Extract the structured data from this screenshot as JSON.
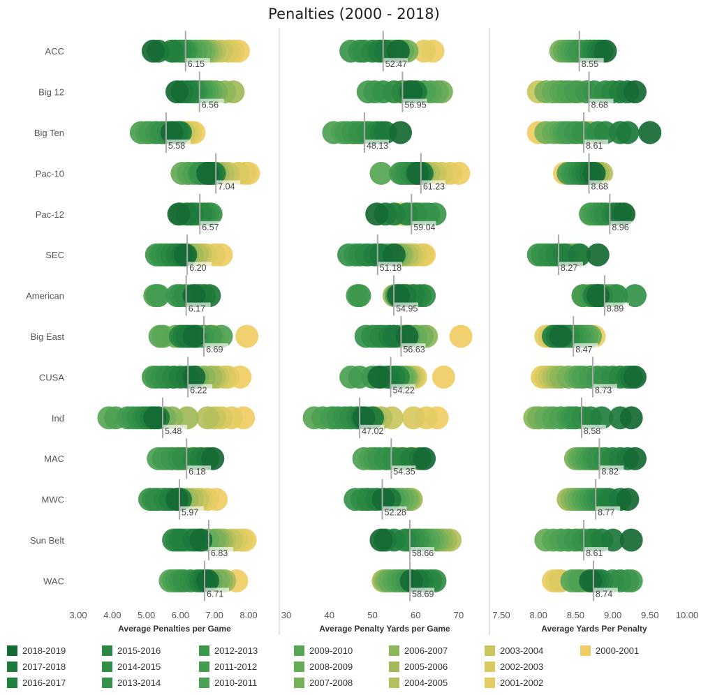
{
  "chart_data": {
    "type": "scatter",
    "title": "Penalties (2000 - 2018)",
    "conferences": [
      "ACC",
      "Big 12",
      "Big Ten",
      "Pac-10",
      "Pac-12",
      "SEC",
      "American",
      "Big East",
      "CUSA",
      "Ind",
      "MAC",
      "MWC",
      "Sun Belt",
      "WAC"
    ],
    "seasons": [
      "2018-2019",
      "2017-2018",
      "2016-2017",
      "2015-2016",
      "2014-2015",
      "2013-2014",
      "2012-2013",
      "2011-2012",
      "2010-2011",
      "2009-2010",
      "2008-2009",
      "2007-2008",
      "2006-2007",
      "2005-2006",
      "2004-2005",
      "2003-2004",
      "2002-2003",
      "2001-2002",
      "2000-2001"
    ],
    "season_colors": [
      "#166b35",
      "#1e7a3c",
      "#22803f",
      "#2a8843",
      "#308e47",
      "#36924a",
      "#3d974d",
      "#449c50",
      "#4da153",
      "#57a656",
      "#66ab58",
      "#76b059",
      "#8db75a",
      "#a2ba5a",
      "#b6bf5d",
      "#c8c65f",
      "#d8c960",
      "#e5cc62",
      "#f0cc64"
    ],
    "panels": [
      {
        "key": "apg",
        "xlabel": "Average Penalties per Game",
        "xlim": [
          3.0,
          8.0
        ],
        "ticks": [
          3.0,
          4.0,
          5.0,
          6.0,
          7.0,
          8.0
        ],
        "tick_labels": [
          "3.00",
          "4.00",
          "5.00",
          "6.00",
          "7.00",
          "8.00"
        ],
        "means": [
          "6.15",
          "6.56",
          "5.58",
          "7.04",
          "6.57",
          "6.20",
          "6.17",
          "6.69",
          "6.22",
          "5.48",
          "6.18",
          "5.97",
          "6.83",
          "6.71"
        ],
        "values": [
          [
            5.2,
            5.35,
            5.75,
            5.85,
            6.0,
            6.1,
            6.15,
            6.2,
            6.3,
            6.45,
            6.6,
            6.7,
            6.8,
            6.9,
            7.0,
            7.2,
            7.4,
            7.55,
            7.7
          ],
          [
            5.9,
            6.05,
            6.2,
            6.3,
            6.4,
            6.45,
            6.5,
            6.6,
            6.7,
            6.8,
            6.9,
            7.05,
            7.3,
            7.55,
            7.05,
            6.9,
            6.7,
            6.55,
            6.4
          ],
          [
            5.75,
            5.9,
            6.0,
            5.95,
            5.65,
            5.45,
            5.3,
            5.1,
            4.85,
            5.0,
            5.25,
            5.55,
            5.75,
            5.85,
            6.0,
            6.1,
            6.2,
            6.3,
            6.4
          ],
          [
            6.8,
            6.9,
            7.0,
            6.95,
            6.85,
            6.6,
            6.55,
            6.7,
            6.4,
            6.25,
            6.05,
            6.2,
            6.75,
            7.1,
            7.25,
            7.4,
            7.7,
            7.9,
            8.0
          ],
          [
            5.95,
            6.2,
            6.35,
            6.6,
            6.7,
            6.8,
            6.9,
            6.85,
            6.5,
            6.45,
            6.3,
            6.0,
            6.1,
            6.2,
            6.35,
            6.45,
            6.55,
            6.6,
            6.7
          ],
          [
            6.15,
            6.05,
            5.9,
            5.75,
            5.6,
            5.45,
            5.3,
            5.4,
            5.55,
            5.7,
            5.85,
            6.0,
            6.2,
            6.35,
            6.5,
            6.6,
            6.75,
            7.0,
            7.2
          ],
          [
            6.4,
            6.85,
            6.7,
            6.55,
            6.15,
            6.0,
            5.9,
            5.35,
            5.3,
            5.25,
            6.3,
            6.4,
            6.55,
            6.6,
            6.7,
            6.45,
            6.5,
            6.6,
            6.7
          ],
          [
            6.4,
            6.2,
            6.1,
            6.0,
            6.3,
            6.5,
            6.65,
            6.9,
            7.2,
            5.4,
            5.5,
            5.85,
            6.0,
            6.2,
            6.45,
            6.75,
            6.8,
            7.0,
            7.95
          ],
          [
            6.4,
            6.2,
            6.0,
            5.8,
            5.6,
            5.45,
            5.3,
            5.2,
            5.6,
            5.8,
            6.3,
            6.5,
            6.7,
            6.9,
            7.0,
            7.1,
            7.3,
            7.4,
            7.75
          ],
          [
            5.25,
            5.35,
            5.15,
            5.0,
            4.9,
            4.75,
            4.6,
            4.45,
            4.1,
            3.9,
            5.1,
            5.55,
            5.75,
            6.2,
            6.8,
            7.0,
            7.2,
            7.5,
            7.85
          ],
          [
            6.95,
            6.8,
            6.6,
            6.4,
            6.1,
            5.95,
            5.75,
            5.5,
            5.35,
            5.6,
            5.75,
            5.9,
            6.05,
            6.2,
            6.3,
            6.4,
            6.55,
            6.65,
            6.8
          ],
          [
            5.9,
            6.0,
            5.7,
            5.55,
            5.3,
            5.2,
            5.1,
            5.35,
            5.5,
            5.65,
            5.75,
            5.9,
            6.05,
            6.2,
            6.35,
            6.5,
            6.6,
            6.8,
            7.05
          ],
          [
            6.6,
            6.4,
            6.0,
            5.8,
            5.9,
            6.1,
            6.2,
            6.3,
            6.5,
            6.6,
            6.8,
            7.0,
            7.1,
            7.2,
            7.3,
            7.5,
            7.65,
            7.8,
            7.9
          ],
          [
            6.8,
            6.7,
            6.6,
            6.5,
            6.3,
            6.1,
            6.0,
            5.9,
            5.8,
            5.7,
            6.9,
            7.1,
            7.2,
            7.3,
            6.85,
            6.95,
            7.05,
            7.3,
            7.65
          ]
        ]
      },
      {
        "key": "ypg",
        "xlabel": "Average Penalty Yards per Game",
        "xlim": [
          30,
          70
        ],
        "ticks": [
          30,
          40,
          50,
          60,
          70
        ],
        "tick_labels": [
          "30",
          "40",
          "50",
          "60",
          "70"
        ],
        "means": [
          "52.47",
          "56.95",
          "48.13",
          "61.23",
          "59.04",
          "51.18",
          "54.95",
          "56.63",
          "54.22",
          "47.02",
          "54.35",
          "52.28",
          "58.66",
          "58.69"
        ],
        "values": [
          [
            56.0,
            53.0,
            51.5,
            50.0,
            48.0,
            47.0,
            45.0,
            52.0,
            54.0,
            55.0,
            57.0,
            58.0,
            56.5,
            55.5,
            54.5,
            53.5,
            55.0,
            62.0,
            64.0
          ],
          [
            59.0,
            60.0,
            58.5,
            57.0,
            55.0,
            52.5,
            50.5,
            49.0,
            62.0,
            63.5,
            65.0,
            66.0,
            62.0,
            60.5,
            59.5,
            58.0,
            57.0,
            56.5,
            56.0
          ],
          [
            56.5,
            53.0,
            52.0,
            51.0,
            49.0,
            47.0,
            45.5,
            44.0,
            41.0,
            43.0,
            46.0,
            48.0,
            50.0,
            49.5,
            48.5,
            47.5,
            46.5,
            45.5,
            44.5
          ],
          [
            60.5,
            61.5,
            61.0,
            60.0,
            59.0,
            58.0,
            57.0,
            56.5,
            57.5,
            52.0,
            58.0,
            59.0,
            60.0,
            62.0,
            63.0,
            64.5,
            66.0,
            68.0,
            70.0
          ],
          [
            51.0,
            53.0,
            55.0,
            58.0,
            60.0,
            63.0,
            64.5,
            62.0,
            61.0,
            60.5,
            60.0,
            59.5,
            59.0,
            58.5,
            58.0,
            57.5,
            57.0,
            56.5,
            56.0
          ],
          [
            55.0,
            52.0,
            50.5,
            48.5,
            47.0,
            44.5,
            46.0,
            49.0,
            51.5,
            53.5,
            54.5,
            55.5,
            56.5,
            57.0,
            58.0,
            59.0,
            60.0,
            61.5,
            62.0
          ],
          [
            56.0,
            57.5,
            59.5,
            61.0,
            62.0,
            57.0,
            47.0,
            46.5,
            55.5,
            56.5,
            57.0,
            58.0,
            56.0,
            55.0,
            57.5,
            58.5,
            59.0,
            59.5,
            60.0
          ],
          [
            58.0,
            55.0,
            54.0,
            52.0,
            50.0,
            48.5,
            51.0,
            53.0,
            56.0,
            58.5,
            60.0,
            61.5,
            62.5,
            57.0,
            57.5,
            58.0,
            59.0,
            60.0,
            70.5
          ],
          [
            51.5,
            53.5,
            55.0,
            56.0,
            54.0,
            52.0,
            50.0,
            47.0,
            45.0,
            55.5,
            57.0,
            57.5,
            57.8,
            58.0,
            58.5,
            59.0,
            59.5,
            60.0,
            66.5
          ],
          [
            48.0,
            50.0,
            47.5,
            46.5,
            45.0,
            43.5,
            42.0,
            40.5,
            38.5,
            36.5,
            41.0,
            44.5,
            49.0,
            50.5,
            52.0,
            54.5,
            59.5,
            62.5,
            65.0
          ],
          [
            62.0,
            61.0,
            59.0,
            57.0,
            55.0,
            53.0,
            51.5,
            50.5,
            48.0,
            49.5,
            53.5,
            54.0,
            55.0,
            55.5,
            56.0,
            57.0,
            58.0,
            59.0,
            60.0
          ],
          [
            52.5,
            54.0,
            51.0,
            49.0,
            47.5,
            46.0,
            48.5,
            50.0,
            55.0,
            56.0,
            57.0,
            58.0,
            58.5,
            59.0,
            53.0,
            53.5,
            54.0,
            54.5,
            55.0
          ],
          [
            52.0,
            53.0,
            55.0,
            57.5,
            58.5,
            59.5,
            60.5,
            61.0,
            62.0,
            63.0,
            64.0,
            65.0,
            66.0,
            67.0,
            68.0,
            62.5,
            63.5,
            64.0,
            65.0
          ],
          [
            59.0,
            60.5,
            61.5,
            63.5,
            64.5,
            62.5,
            58.0,
            57.0,
            56.0,
            55.0,
            54.0,
            53.5,
            53.0,
            52.5,
            55.5,
            56.5,
            57.5,
            58.5,
            59.5
          ]
        ]
      },
      {
        "key": "ypp",
        "xlabel": "Average Yards Per Penalty",
        "xlim": [
          7.5,
          10.0
        ],
        "ticks": [
          7.5,
          8.0,
          8.5,
          9.0,
          9.5,
          10.0
        ],
        "tick_labels": [
          "7.50",
          "8.00",
          "8.50",
          "9.00",
          "9.50",
          "10.00"
        ],
        "means": [
          "8.55",
          "8.68",
          "8.61",
          "8.68",
          "8.96",
          "8.27",
          "8.89",
          "8.47",
          "8.73",
          "8.58",
          "8.82",
          "8.77",
          "8.61",
          "8.74"
        ],
        "values": [
          [
            8.9,
            8.85,
            8.8,
            8.75,
            8.7,
            8.65,
            8.55,
            8.5,
            8.45,
            8.4,
            8.35,
            8.3,
            8.6,
            8.65,
            8.7,
            8.75,
            8.6,
            8.55,
            8.5
          ],
          [
            9.3,
            9.2,
            9.1,
            9.0,
            8.9,
            8.75,
            8.65,
            8.5,
            8.4,
            8.3,
            8.2,
            8.1,
            8.35,
            8.55,
            8.25,
            8.0,
            8.2,
            8.3,
            8.45
          ],
          [
            9.5,
            9.2,
            9.1,
            8.9,
            8.8,
            8.6,
            8.5,
            8.4,
            8.35,
            8.3,
            8.2,
            8.1,
            8.45,
            8.7,
            8.65,
            8.55,
            8.25,
            8.1,
            8.0
          ],
          [
            8.75,
            8.7,
            8.65,
            8.6,
            8.55,
            8.5,
            8.45,
            8.4,
            8.55,
            8.6,
            8.65,
            8.7,
            8.75,
            8.8,
            8.85,
            8.8,
            8.75,
            8.7,
            8.35
          ],
          [
            9.15,
            9.1,
            9.05,
            9.0,
            8.9,
            8.85,
            8.8,
            8.75,
            8.7,
            8.7,
            8.75,
            8.8,
            8.85,
            8.9,
            8.95,
            9.0,
            9.05,
            9.1,
            9.15
          ],
          [
            8.8,
            8.55,
            8.35,
            8.25,
            8.15,
            8.05,
            8.0,
            8.1,
            8.2,
            8.3,
            8.4,
            8.5,
            8.55,
            8.45,
            8.35,
            8.25,
            8.2,
            8.15,
            8.1
          ],
          [
            8.8,
            8.8,
            8.75,
            8.85,
            9.05,
            9.3,
            8.6,
            8.7,
            8.85,
            8.95,
            9.0,
            8.9,
            8.8,
            8.75,
            8.7,
            8.65,
            8.6,
            8.8,
            8.85
          ],
          [
            8.3,
            8.25,
            8.2,
            8.35,
            8.4,
            8.45,
            8.5,
            8.55,
            8.6,
            8.65,
            8.7,
            8.4,
            8.35,
            8.3,
            8.25,
            8.2,
            8.15,
            8.1,
            8.75
          ],
          [
            9.3,
            9.25,
            9.2,
            9.1,
            9.0,
            8.9,
            8.8,
            8.7,
            8.6,
            8.55,
            8.5,
            8.4,
            8.3,
            8.25,
            8.2,
            8.15,
            8.1,
            8.05,
            8.6
          ],
          [
            9.25,
            9.1,
            8.85,
            8.7,
            8.6,
            8.5,
            8.45,
            8.4,
            8.3,
            8.2,
            8.1,
            8.0,
            7.95,
            8.0,
            8.15,
            8.3,
            8.4,
            8.5,
            8.6
          ],
          [
            9.3,
            9.2,
            9.1,
            9.0,
            8.9,
            8.8,
            8.75,
            8.7,
            8.65,
            8.6,
            8.55,
            8.5,
            8.55,
            8.6,
            8.65,
            8.7,
            8.75,
            8.8,
            8.85
          ],
          [
            9.2,
            9.1,
            8.95,
            8.9,
            8.85,
            8.8,
            8.75,
            8.7,
            8.65,
            8.6,
            8.55,
            8.5,
            8.45,
            8.4,
            8.45,
            8.5,
            8.55,
            8.6,
            8.65
          ],
          [
            9.25,
            9.0,
            8.85,
            8.75,
            8.7,
            8.6,
            8.5,
            8.4,
            8.3,
            8.2,
            8.1,
            8.3,
            8.4,
            8.5,
            8.55,
            8.6,
            8.65,
            8.7,
            8.75
          ],
          [
            8.7,
            8.75,
            8.8,
            8.85,
            9.0,
            9.1,
            9.2,
            9.25,
            8.55,
            8.45,
            8.5,
            8.6,
            8.65,
            8.7,
            8.75,
            8.8,
            8.3,
            8.25,
            8.2
          ]
        ]
      }
    ]
  }
}
